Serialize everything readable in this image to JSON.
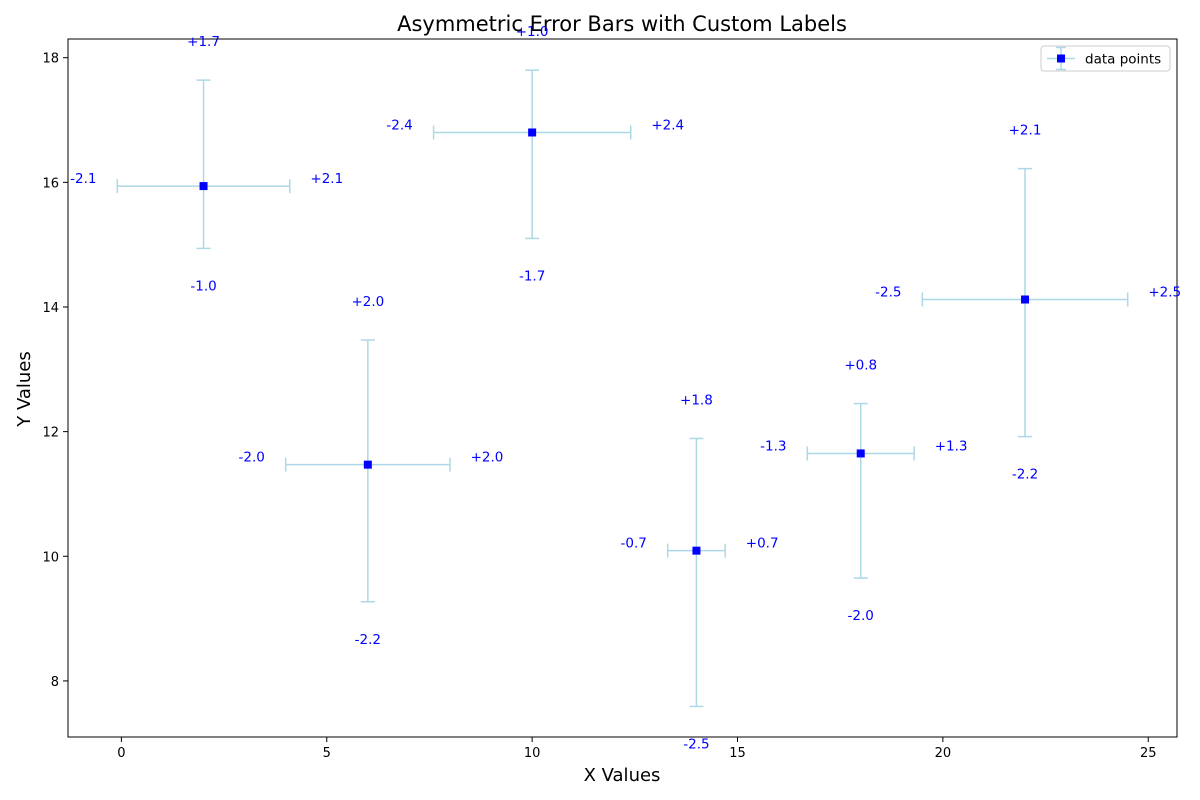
{
  "colors": {
    "marker": "#0000ff",
    "errorbar": "#add8e6",
    "label": "#0000ff"
  },
  "chart_data": {
    "type": "scatter",
    "title": "Asymmetric Error Bars with Custom Labels",
    "xlabel": "X Values",
    "ylabel": "Y Values",
    "xlim": [
      -1.3,
      25.7
    ],
    "ylim": [
      7.1,
      18.3
    ],
    "xticks": [
      0,
      5,
      10,
      15,
      20,
      25
    ],
    "yticks": [
      8,
      10,
      12,
      14,
      16,
      18
    ],
    "grid": false,
    "legend": {
      "location": "upper right",
      "entries": [
        "data points"
      ]
    },
    "series": [
      {
        "name": "data points",
        "marker": "square",
        "points": [
          {
            "x": 2,
            "y": 15.94,
            "yerr_minus": 1.0,
            "yerr_plus": 1.7,
            "xerr_minus": 2.1,
            "xerr_plus": 2.1,
            "labels": {
              "top": "+1.7",
              "bottom": "-1.0",
              "left": "-2.1",
              "right": "+2.1"
            }
          },
          {
            "x": 6,
            "y": 11.47,
            "yerr_minus": 2.2,
            "yerr_plus": 2.0,
            "xerr_minus": 2.0,
            "xerr_plus": 2.0,
            "labels": {
              "top": "+2.0",
              "bottom": "-2.2",
              "left": "-2.0",
              "right": "+2.0"
            }
          },
          {
            "x": 10,
            "y": 16.8,
            "yerr_minus": 1.7,
            "yerr_plus": 1.0,
            "xerr_minus": 2.4,
            "xerr_plus": 2.4,
            "labels": {
              "top": "+1.0",
              "bottom": "-1.7",
              "left": "-2.4",
              "right": "+2.4"
            }
          },
          {
            "x": 14,
            "y": 10.09,
            "yerr_minus": 2.5,
            "yerr_plus": 1.8,
            "xerr_minus": 0.7,
            "xerr_plus": 0.7,
            "labels": {
              "top": "+1.8",
              "bottom": "-2.5",
              "left": "-0.7",
              "right": "+0.7"
            }
          },
          {
            "x": 18,
            "y": 11.65,
            "yerr_minus": 2.0,
            "yerr_plus": 0.8,
            "xerr_minus": 1.3,
            "xerr_plus": 1.3,
            "labels": {
              "top": "+0.8",
              "bottom": "-2.0",
              "left": "-1.3",
              "right": "+1.3"
            }
          },
          {
            "x": 22,
            "y": 14.12,
            "yerr_minus": 2.2,
            "yerr_plus": 2.1,
            "xerr_minus": 2.5,
            "xerr_plus": 2.5,
            "labels": {
              "top": "+2.1",
              "bottom": "-2.2",
              "left": "-2.5",
              "right": "+2.5"
            }
          }
        ]
      }
    ]
  }
}
